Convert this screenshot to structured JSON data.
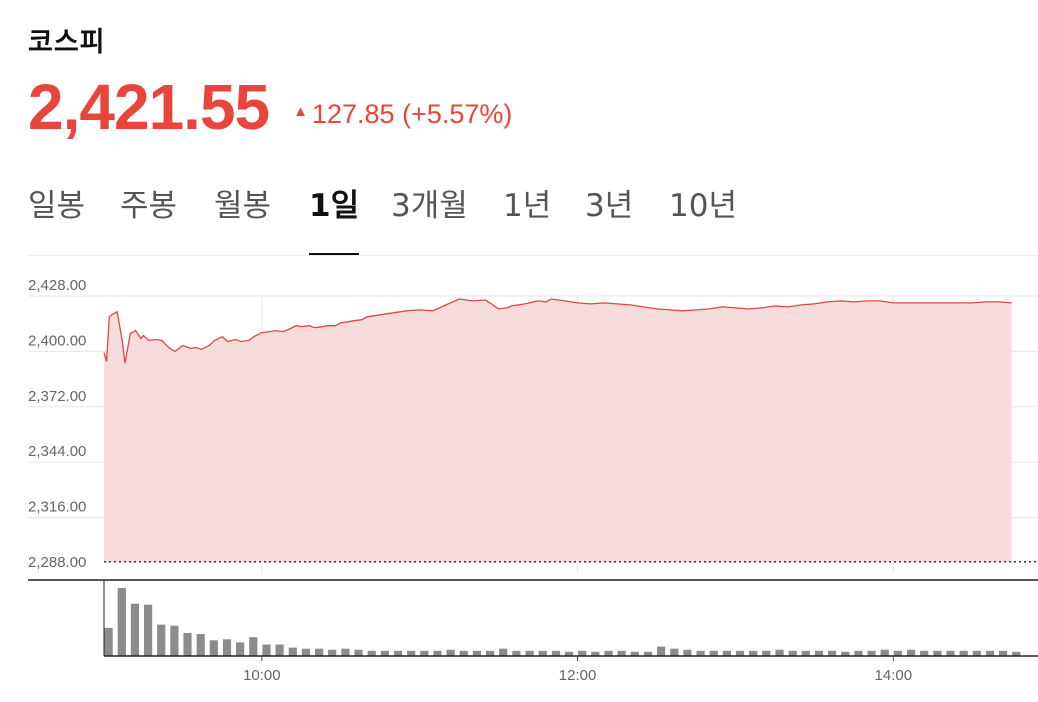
{
  "header": {
    "title": "코스피",
    "price": "2,421.55",
    "change_arrow": "▲",
    "change_text": "127.85 (+5.57%)"
  },
  "tabs": [
    {
      "label": "일봉",
      "active": false
    },
    {
      "label": "주봉",
      "active": false
    },
    {
      "label": "월봉",
      "active": false
    },
    {
      "label": "1일",
      "active": true
    },
    {
      "label": "3개월",
      "active": false
    },
    {
      "label": "1년",
      "active": false
    },
    {
      "label": "3년",
      "active": false
    },
    {
      "label": "10년",
      "active": false
    }
  ],
  "colors": {
    "up": "#e8453c",
    "line": "#d94a43",
    "area": "#f7dcdc",
    "volume": "#8c8c8c"
  },
  "chart_data": {
    "type": "area",
    "y_ticks": [
      "2,428.00",
      "2,400.00",
      "2,372.00",
      "2,344.00",
      "2,316.00",
      "2,288.00"
    ],
    "ylim": [
      2288,
      2428
    ],
    "x_ticks": [
      "10:00",
      "12:00",
      "14:00"
    ],
    "xlim": [
      "09:00",
      "14:55"
    ],
    "baseline": 2293.7,
    "series": [
      {
        "x": [
          "09:00",
          "09:01",
          "09:02",
          "09:03",
          "09:05",
          "09:07",
          "09:08",
          "09:10",
          "09:12",
          "09:14",
          "09:15",
          "09:17",
          "09:20",
          "09:22",
          "09:25",
          "09:27",
          "09:30",
          "09:33",
          "09:35",
          "09:37",
          "09:40",
          "09:42",
          "09:45",
          "09:47",
          "09:50",
          "09:52",
          "09:55",
          "09:57",
          "10:00",
          "10:03",
          "10:05",
          "10:08",
          "10:10",
          "10:13",
          "10:15",
          "10:18",
          "10:20",
          "10:23",
          "10:25",
          "10:28",
          "10:30",
          "10:33",
          "10:35",
          "10:38",
          "10:40",
          "10:45",
          "10:50",
          "10:55",
          "11:00",
          "11:05",
          "11:10",
          "11:15",
          "11:20",
          "11:25",
          "11:30",
          "11:33",
          "11:35",
          "11:40",
          "11:45",
          "11:48",
          "11:50",
          "11:55",
          "12:00",
          "12:05",
          "12:10",
          "12:15",
          "12:20",
          "12:25",
          "12:30",
          "12:35",
          "12:40",
          "12:45",
          "12:50",
          "12:55",
          "13:00",
          "13:05",
          "13:10",
          "13:15",
          "13:20",
          "13:25",
          "13:30",
          "13:35",
          "13:40",
          "13:45",
          "13:50",
          "13:55",
          "14:00",
          "14:05",
          "14:10",
          "14:15",
          "14:20",
          "14:25",
          "14:30",
          "14:35",
          "14:40",
          "14:45"
        ],
        "values": [
          2399.5,
          2395.0,
          2417.5,
          2418.5,
          2420.0,
          2405.0,
          2394.0,
          2409.0,
          2410.5,
          2406.5,
          2408.0,
          2405.5,
          2406.0,
          2405.5,
          2401.5,
          2400.0,
          2403.0,
          2401.5,
          2402.0,
          2401.0,
          2403.0,
          2405.5,
          2407.5,
          2405.0,
          2406.0,
          2405.0,
          2405.5,
          2407.5,
          2409.5,
          2410.0,
          2410.5,
          2410.0,
          2411.0,
          2413.0,
          2412.5,
          2413.0,
          2412.0,
          2412.5,
          2413.0,
          2413.0,
          2414.5,
          2415.0,
          2415.5,
          2416.0,
          2417.5,
          2418.5,
          2419.5,
          2420.5,
          2421.0,
          2420.5,
          2423.5,
          2426.5,
          2425.5,
          2426.0,
          2421.5,
          2422.0,
          2423.0,
          2424.0,
          2425.5,
          2425.0,
          2426.5,
          2425.5,
          2424.5,
          2424.0,
          2424.5,
          2424.0,
          2423.5,
          2422.5,
          2421.5,
          2421.0,
          2420.5,
          2421.0,
          2421.5,
          2422.5,
          2422.0,
          2421.5,
          2422.0,
          2423.0,
          2422.5,
          2423.5,
          2424.0,
          2425.0,
          2425.5,
          2425.0,
          2425.5,
          2425.5,
          2424.5,
          2424.5,
          2424.5,
          2424.5,
          2424.5,
          2424.5,
          2424.5,
          2425.0,
          2425.0,
          2424.5
        ]
      }
    ],
    "volume": {
      "x": [
        "09:00",
        "09:05",
        "09:10",
        "09:15",
        "09:20",
        "09:25",
        "09:30",
        "09:35",
        "09:40",
        "09:45",
        "09:50",
        "09:55",
        "10:00",
        "10:05",
        "10:10",
        "10:15",
        "10:20",
        "10:25",
        "10:30",
        "10:35",
        "10:40",
        "10:45",
        "10:50",
        "10:55",
        "11:00",
        "11:05",
        "11:10",
        "11:15",
        "11:20",
        "11:25",
        "11:30",
        "11:35",
        "11:40",
        "11:45",
        "11:50",
        "11:55",
        "12:00",
        "12:05",
        "12:10",
        "12:15",
        "12:20",
        "12:25",
        "12:30",
        "12:35",
        "12:40",
        "12:45",
        "12:50",
        "12:55",
        "13:00",
        "13:05",
        "13:10",
        "13:15",
        "13:20",
        "13:25",
        "13:30",
        "13:35",
        "13:40",
        "13:45",
        "13:50",
        "13:55",
        "14:00",
        "14:05",
        "14:10",
        "14:15",
        "14:20",
        "14:25",
        "14:30",
        "14:35",
        "14:40",
        "14:45",
        "14:50"
      ],
      "values": [
        27,
        65,
        50,
        49,
        30,
        29,
        22,
        21,
        15,
        16,
        13,
        18,
        11,
        11,
        8,
        7,
        7,
        6,
        7,
        6,
        5,
        5,
        5,
        5,
        5,
        5,
        6,
        5,
        5,
        5,
        7,
        5,
        5,
        5,
        5,
        4,
        5,
        4,
        5,
        5,
        4,
        4,
        9,
        7,
        6,
        5,
        5,
        5,
        5,
        5,
        5,
        6,
        5,
        5,
        5,
        5,
        4,
        5,
        5,
        6,
        5,
        6,
        5,
        5,
        5,
        5,
        5,
        5,
        5,
        4,
        0
      ]
    }
  }
}
